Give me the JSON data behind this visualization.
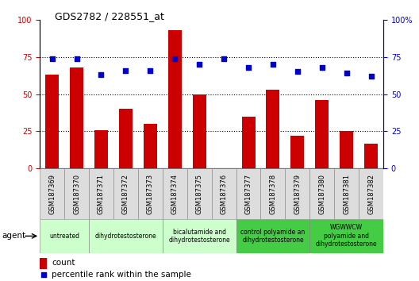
{
  "title": "GDS2782 / 228551_at",
  "samples": [
    "GSM187369",
    "GSM187370",
    "GSM187371",
    "GSM187372",
    "GSM187373",
    "GSM187374",
    "GSM187375",
    "GSM187376",
    "GSM187377",
    "GSM187378",
    "GSM187379",
    "GSM187380",
    "GSM187381",
    "GSM187382"
  ],
  "counts": [
    63,
    68,
    26,
    40,
    30,
    93,
    50,
    0,
    35,
    53,
    22,
    46,
    25,
    17
  ],
  "percentile_ranks": [
    74,
    74,
    63,
    66,
    66,
    74,
    70,
    74,
    68,
    70,
    65,
    68,
    64,
    62
  ],
  "bar_color": "#cc0000",
  "dot_color": "#0000cc",
  "ylim_left": [
    0,
    100
  ],
  "ylim_right": [
    0,
    100
  ],
  "gridlines": [
    25,
    50,
    75
  ],
  "agent_groups": [
    {
      "label": "untreated",
      "start": 0,
      "end": 1,
      "color": "#ccffcc"
    },
    {
      "label": "dihydrotestosterone",
      "start": 2,
      "end": 4,
      "color": "#ccffcc"
    },
    {
      "label": "bicalutamide and\ndihydrotestosterone",
      "start": 5,
      "end": 7,
      "color": "#ccffcc"
    },
    {
      "label": "control polyamide an\ndihydrotestosterone",
      "start": 8,
      "end": 10,
      "color": "#44cc44"
    },
    {
      "label": "WGWWCW\npolyamide and\ndihydrotestosterone",
      "start": 11,
      "end": 13,
      "color": "#44cc44"
    }
  ],
  "legend_count_label": "count",
  "legend_pct_label": "percentile rank within the sample",
  "agent_label": "agent",
  "left_axis_color": "#cc0000",
  "right_axis_color": "#0000cc",
  "tick_bg_color": "#dddddd",
  "figsize": [
    5.28,
    3.54
  ],
  "dpi": 100
}
